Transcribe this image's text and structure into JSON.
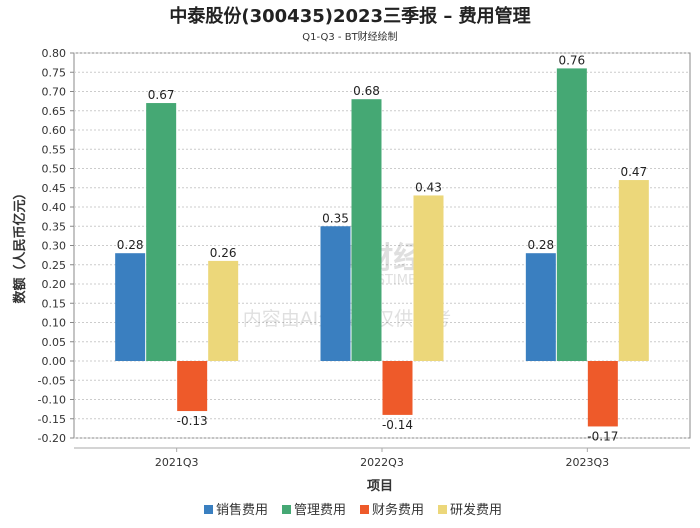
{
  "chart_data": {
    "type": "bar",
    "title": "中泰股份(300435)2023三季报 – 费用管理",
    "subtitle": "Q1-Q3 - BT财经绘制",
    "xlabel": "项目",
    "ylabel": "数额（人民币亿元）",
    "categories": [
      "2021Q3",
      "2022Q3",
      "2023Q3"
    ],
    "ylim": [
      -0.2,
      0.8
    ],
    "yticks": [
      "-0.20",
      "-0.15",
      "-0.10",
      "-0.05",
      "0.00",
      "0.05",
      "0.10",
      "0.15",
      "0.20",
      "0.25",
      "0.30",
      "0.35",
      "0.40",
      "0.45",
      "0.50",
      "0.55",
      "0.60",
      "0.65",
      "0.70",
      "0.75",
      "0.80"
    ],
    "grid": true,
    "legend_position": "bottom",
    "series": [
      {
        "name": "销售费用",
        "color": "#3a7fc0",
        "values": [
          0.28,
          0.35,
          0.28
        ]
      },
      {
        "name": "管理费用",
        "color": "#45a874",
        "values": [
          0.67,
          0.68,
          0.76
        ]
      },
      {
        "name": "财务费用",
        "color": "#ee5a2a",
        "values": [
          -0.13,
          -0.14,
          -0.17
        ]
      },
      {
        "name": "研发费用",
        "color": "#ecd77a",
        "values": [
          0.26,
          0.43,
          0.47
        ]
      }
    ]
  },
  "watermark": {
    "brand": "BT财经",
    "brand_en": "BUSINESSTIMES",
    "notice": "内容由AI生成，仅供参考"
  }
}
